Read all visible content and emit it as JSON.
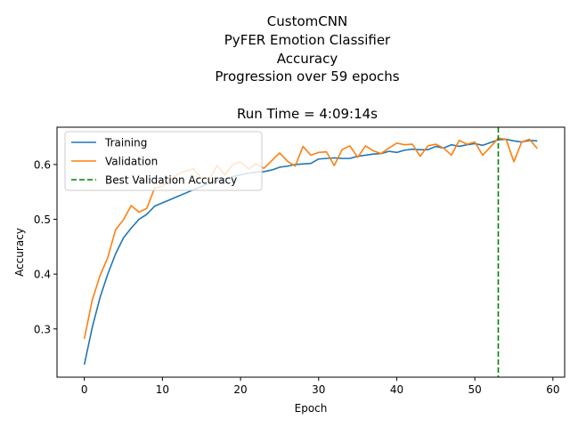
{
  "chart_data": {
    "type": "line",
    "title_lines": [
      "CustomCNN",
      "PyFER Emotion Classifier",
      "Accuracy",
      "Progression over 59 epochs"
    ],
    "subtitle": "Run Time = 4:09:14s",
    "xlabel": "Epoch",
    "ylabel": "Accuracy",
    "xlim": [
      -3.5,
      61.5
    ],
    "ylim": [
      0.212,
      0.668
    ],
    "xticks": [
      0,
      10,
      20,
      30,
      40,
      50,
      60
    ],
    "yticks": [
      0.3,
      0.4,
      0.5,
      0.6
    ],
    "ytick_labels": [
      "0.3",
      "0.4",
      "0.5",
      "0.6"
    ],
    "grid": false,
    "legend_position": "upper-left",
    "x": [
      0,
      1,
      2,
      3,
      4,
      5,
      6,
      7,
      8,
      9,
      10,
      11,
      12,
      13,
      14,
      15,
      16,
      17,
      18,
      19,
      20,
      21,
      22,
      23,
      24,
      25,
      26,
      27,
      28,
      29,
      30,
      31,
      32,
      33,
      34,
      35,
      36,
      37,
      38,
      39,
      40,
      41,
      42,
      43,
      44,
      45,
      46,
      47,
      48,
      49,
      50,
      51,
      52,
      53,
      54,
      55,
      56,
      57,
      58
    ],
    "series": [
      {
        "name": "Training",
        "color": "#1f77b4",
        "style": "solid",
        "values": [
          0.235,
          0.302,
          0.357,
          0.4,
          0.437,
          0.466,
          0.484,
          0.5,
          0.509,
          0.524,
          0.53,
          0.536,
          0.542,
          0.548,
          0.554,
          0.56,
          0.566,
          0.57,
          0.574,
          0.578,
          0.581,
          0.584,
          0.586,
          0.587,
          0.59,
          0.595,
          0.597,
          0.6,
          0.601,
          0.602,
          0.61,
          0.611,
          0.612,
          0.611,
          0.611,
          0.615,
          0.617,
          0.619,
          0.62,
          0.624,
          0.622,
          0.626,
          0.628,
          0.627,
          0.627,
          0.633,
          0.63,
          0.636,
          0.633,
          0.636,
          0.638,
          0.635,
          0.64,
          0.645,
          0.646,
          0.643,
          0.641,
          0.644,
          0.643
        ]
      },
      {
        "name": "Validation",
        "color": "#ff7f0e",
        "style": "solid",
        "values": [
          0.282,
          0.352,
          0.397,
          0.43,
          0.481,
          0.499,
          0.525,
          0.513,
          0.52,
          0.557,
          0.56,
          0.572,
          0.583,
          0.588,
          0.592,
          0.575,
          0.573,
          0.598,
          0.581,
          0.6,
          0.605,
          0.592,
          0.601,
          0.593,
          0.607,
          0.621,
          0.606,
          0.597,
          0.633,
          0.617,
          0.622,
          0.623,
          0.598,
          0.627,
          0.634,
          0.613,
          0.634,
          0.625,
          0.62,
          0.63,
          0.639,
          0.636,
          0.637,
          0.615,
          0.634,
          0.637,
          0.63,
          0.617,
          0.644,
          0.637,
          0.641,
          0.617,
          0.632,
          0.648,
          0.646,
          0.605,
          0.641,
          0.646,
          0.629
        ]
      }
    ],
    "best_validation": {
      "name": "Best Validation Accuracy",
      "epoch": 53,
      "color": "#008000",
      "style": "dashed"
    }
  }
}
